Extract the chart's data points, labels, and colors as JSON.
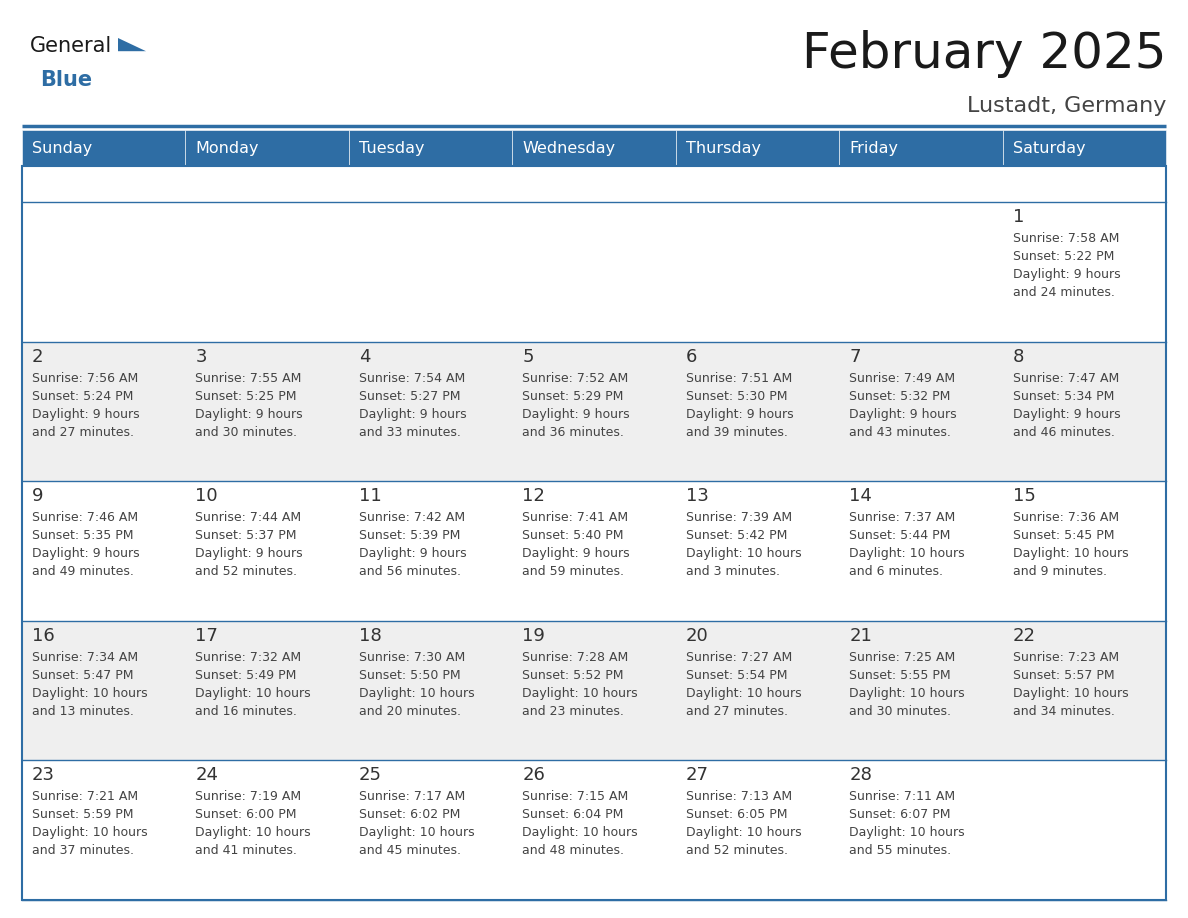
{
  "title": "February 2025",
  "subtitle": "Lustadt, Germany",
  "header_bg": "#2E6DA4",
  "header_text_color": "#FFFFFF",
  "cell_bg_odd": "#FFFFFF",
  "cell_bg_even": "#EFEFEF",
  "border_color": "#2E6DA4",
  "day_names": [
    "Sunday",
    "Monday",
    "Tuesday",
    "Wednesday",
    "Thursday",
    "Friday",
    "Saturday"
  ],
  "title_color": "#1a1a1a",
  "subtitle_color": "#444444",
  "day_number_color": "#333333",
  "cell_text_color": "#444444",
  "logo_general_color": "#1a1a1a",
  "logo_blue_color": "#2E6DA4",
  "calendar_data": [
    [
      null,
      null,
      null,
      null,
      null,
      null,
      {
        "day": "1",
        "sunrise": "7:58 AM",
        "sunset": "5:22 PM",
        "daylight_line1": "Daylight: 9 hours",
        "daylight_line2": "and 24 minutes."
      }
    ],
    [
      {
        "day": "2",
        "sunrise": "7:56 AM",
        "sunset": "5:24 PM",
        "daylight_line1": "Daylight: 9 hours",
        "daylight_line2": "and 27 minutes."
      },
      {
        "day": "3",
        "sunrise": "7:55 AM",
        "sunset": "5:25 PM",
        "daylight_line1": "Daylight: 9 hours",
        "daylight_line2": "and 30 minutes."
      },
      {
        "day": "4",
        "sunrise": "7:54 AM",
        "sunset": "5:27 PM",
        "daylight_line1": "Daylight: 9 hours",
        "daylight_line2": "and 33 minutes."
      },
      {
        "day": "5",
        "sunrise": "7:52 AM",
        "sunset": "5:29 PM",
        "daylight_line1": "Daylight: 9 hours",
        "daylight_line2": "and 36 minutes."
      },
      {
        "day": "6",
        "sunrise": "7:51 AM",
        "sunset": "5:30 PM",
        "daylight_line1": "Daylight: 9 hours",
        "daylight_line2": "and 39 minutes."
      },
      {
        "day": "7",
        "sunrise": "7:49 AM",
        "sunset": "5:32 PM",
        "daylight_line1": "Daylight: 9 hours",
        "daylight_line2": "and 43 minutes."
      },
      {
        "day": "8",
        "sunrise": "7:47 AM",
        "sunset": "5:34 PM",
        "daylight_line1": "Daylight: 9 hours",
        "daylight_line2": "and 46 minutes."
      }
    ],
    [
      {
        "day": "9",
        "sunrise": "7:46 AM",
        "sunset": "5:35 PM",
        "daylight_line1": "Daylight: 9 hours",
        "daylight_line2": "and 49 minutes."
      },
      {
        "day": "10",
        "sunrise": "7:44 AM",
        "sunset": "5:37 PM",
        "daylight_line1": "Daylight: 9 hours",
        "daylight_line2": "and 52 minutes."
      },
      {
        "day": "11",
        "sunrise": "7:42 AM",
        "sunset": "5:39 PM",
        "daylight_line1": "Daylight: 9 hours",
        "daylight_line2": "and 56 minutes."
      },
      {
        "day": "12",
        "sunrise": "7:41 AM",
        "sunset": "5:40 PM",
        "daylight_line1": "Daylight: 9 hours",
        "daylight_line2": "and 59 minutes."
      },
      {
        "day": "13",
        "sunrise": "7:39 AM",
        "sunset": "5:42 PM",
        "daylight_line1": "Daylight: 10 hours",
        "daylight_line2": "and 3 minutes."
      },
      {
        "day": "14",
        "sunrise": "7:37 AM",
        "sunset": "5:44 PM",
        "daylight_line1": "Daylight: 10 hours",
        "daylight_line2": "and 6 minutes."
      },
      {
        "day": "15",
        "sunrise": "7:36 AM",
        "sunset": "5:45 PM",
        "daylight_line1": "Daylight: 10 hours",
        "daylight_line2": "and 9 minutes."
      }
    ],
    [
      {
        "day": "16",
        "sunrise": "7:34 AM",
        "sunset": "5:47 PM",
        "daylight_line1": "Daylight: 10 hours",
        "daylight_line2": "and 13 minutes."
      },
      {
        "day": "17",
        "sunrise": "7:32 AM",
        "sunset": "5:49 PM",
        "daylight_line1": "Daylight: 10 hours",
        "daylight_line2": "and 16 minutes."
      },
      {
        "day": "18",
        "sunrise": "7:30 AM",
        "sunset": "5:50 PM",
        "daylight_line1": "Daylight: 10 hours",
        "daylight_line2": "and 20 minutes."
      },
      {
        "day": "19",
        "sunrise": "7:28 AM",
        "sunset": "5:52 PM",
        "daylight_line1": "Daylight: 10 hours",
        "daylight_line2": "and 23 minutes."
      },
      {
        "day": "20",
        "sunrise": "7:27 AM",
        "sunset": "5:54 PM",
        "daylight_line1": "Daylight: 10 hours",
        "daylight_line2": "and 27 minutes."
      },
      {
        "day": "21",
        "sunrise": "7:25 AM",
        "sunset": "5:55 PM",
        "daylight_line1": "Daylight: 10 hours",
        "daylight_line2": "and 30 minutes."
      },
      {
        "day": "22",
        "sunrise": "7:23 AM",
        "sunset": "5:57 PM",
        "daylight_line1": "Daylight: 10 hours",
        "daylight_line2": "and 34 minutes."
      }
    ],
    [
      {
        "day": "23",
        "sunrise": "7:21 AM",
        "sunset": "5:59 PM",
        "daylight_line1": "Daylight: 10 hours",
        "daylight_line2": "and 37 minutes."
      },
      {
        "day": "24",
        "sunrise": "7:19 AM",
        "sunset": "6:00 PM",
        "daylight_line1": "Daylight: 10 hours",
        "daylight_line2": "and 41 minutes."
      },
      {
        "day": "25",
        "sunrise": "7:17 AM",
        "sunset": "6:02 PM",
        "daylight_line1": "Daylight: 10 hours",
        "daylight_line2": "and 45 minutes."
      },
      {
        "day": "26",
        "sunrise": "7:15 AM",
        "sunset": "6:04 PM",
        "daylight_line1": "Daylight: 10 hours",
        "daylight_line2": "and 48 minutes."
      },
      {
        "day": "27",
        "sunrise": "7:13 AM",
        "sunset": "6:05 PM",
        "daylight_line1": "Daylight: 10 hours",
        "daylight_line2": "and 52 minutes."
      },
      {
        "day": "28",
        "sunrise": "7:11 AM",
        "sunset": "6:07 PM",
        "daylight_line1": "Daylight: 10 hours",
        "daylight_line2": "and 55 minutes."
      },
      null
    ]
  ]
}
